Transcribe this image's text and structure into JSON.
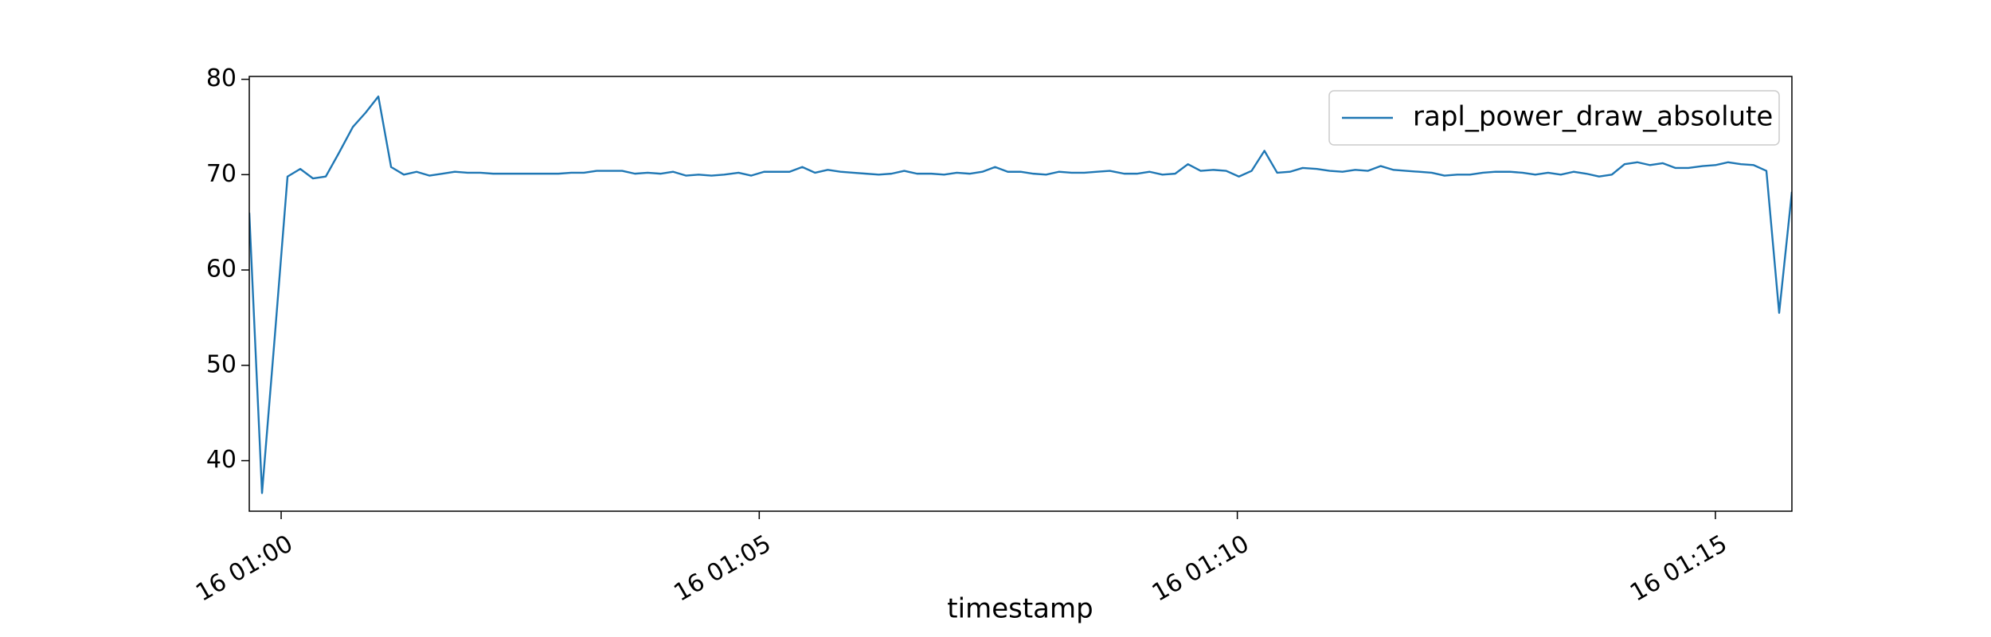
{
  "chart_data": {
    "type": "line",
    "xlabel": "timestamp",
    "x": [
      "16 00:59:40",
      "16 00:59:48",
      "16 00:59:56",
      "16 01:00:04",
      "16 01:00:12",
      "16 01:00:20",
      "16 01:00:28",
      "16 01:00:36",
      "16 01:00:45",
      "16 01:00:53",
      "16 01:01:01",
      "16 01:01:09",
      "16 01:01:17",
      "16 01:01:25",
      "16 01:01:33",
      "16 01:01:41",
      "16 01:01:49",
      "16 01:01:57",
      "16 01:02:05",
      "16 01:02:13",
      "16 01:02:21",
      "16 01:02:29",
      "16 01:02:37",
      "16 01:02:46",
      "16 01:02:54",
      "16 01:03:02",
      "16 01:03:10",
      "16 01:03:18",
      "16 01:03:26",
      "16 01:03:34",
      "16 01:03:42",
      "16 01:03:50",
      "16 01:03:58",
      "16 01:04:06",
      "16 01:04:14",
      "16 01:04:22",
      "16 01:04:30",
      "16 01:04:38",
      "16 01:04:47",
      "16 01:04:55",
      "16 01:05:03",
      "16 01:05:11",
      "16 01:05:19",
      "16 01:05:27",
      "16 01:05:35",
      "16 01:05:43",
      "16 01:05:51",
      "16 01:05:59",
      "16 01:06:07",
      "16 01:06:15",
      "16 01:06:23",
      "16 01:06:31",
      "16 01:06:39",
      "16 01:06:48",
      "16 01:06:56",
      "16 01:07:04",
      "16 01:07:12",
      "16 01:07:20",
      "16 01:07:28",
      "16 01:07:36",
      "16 01:07:44",
      "16 01:07:52",
      "16 01:08:00",
      "16 01:08:08",
      "16 01:08:16",
      "16 01:08:24",
      "16 01:08:32",
      "16 01:08:40",
      "16 01:08:49",
      "16 01:08:57",
      "16 01:09:05",
      "16 01:09:13",
      "16 01:09:21",
      "16 01:09:29",
      "16 01:09:37",
      "16 01:09:45",
      "16 01:09:53",
      "16 01:10:01",
      "16 01:10:09",
      "16 01:10:17",
      "16 01:10:25",
      "16 01:10:33",
      "16 01:10:41",
      "16 01:10:50",
      "16 01:10:58",
      "16 01:11:06",
      "16 01:11:14",
      "16 01:11:22",
      "16 01:11:30",
      "16 01:11:38",
      "16 01:11:46",
      "16 01:11:54",
      "16 01:12:02",
      "16 01:12:10",
      "16 01:12:18",
      "16 01:12:26",
      "16 01:12:34",
      "16 01:12:42",
      "16 01:12:51",
      "16 01:12:59",
      "16 01:13:07",
      "16 01:13:15",
      "16 01:13:23",
      "16 01:13:31",
      "16 01:13:39",
      "16 01:13:47",
      "16 01:13:55",
      "16 01:14:03",
      "16 01:14:11",
      "16 01:14:19",
      "16 01:14:27",
      "16 01:14:35",
      "16 01:14:43",
      "16 01:14:52",
      "16 01:15:00",
      "16 01:15:08",
      "16 01:15:16",
      "16 01:15:24",
      "16 01:15:32",
      "16 01:15:40",
      "16 01:15:48"
    ],
    "series": [
      {
        "name": "rapl_power_draw_absolute",
        "color": "#1f77b4",
        "values": [
          66,
          36.6,
          53,
          69.8,
          70.6,
          69.6,
          69.8,
          72.2,
          75,
          76.5,
          78.2,
          70.8,
          70.0,
          70.3,
          69.9,
          70.1,
          70.3,
          70.2,
          70.2,
          70.1,
          70.1,
          70.1,
          70.1,
          70.1,
          70.1,
          70.2,
          70.2,
          70.4,
          70.4,
          70.4,
          70.1,
          70.2,
          70.1,
          70.3,
          69.9,
          70.0,
          69.9,
          70.0,
          70.2,
          69.9,
          70.3,
          70.3,
          70.3,
          70.8,
          70.2,
          70.5,
          70.3,
          70.2,
          70.1,
          70.0,
          70.1,
          70.4,
          70.1,
          70.1,
          70.0,
          70.2,
          70.1,
          70.3,
          70.8,
          70.3,
          70.3,
          70.1,
          70.0,
          70.3,
          70.2,
          70.2,
          70.3,
          70.4,
          70.1,
          70.1,
          70.3,
          70.0,
          70.1,
          71.1,
          70.4,
          70.5,
          70.4,
          69.8,
          70.4,
          72.5,
          70.2,
          70.3,
          70.7,
          70.6,
          70.4,
          70.3,
          70.5,
          70.4,
          70.9,
          70.5,
          70.4,
          70.3,
          70.2,
          69.9,
          70.0,
          70.0,
          70.2,
          70.3,
          70.3,
          70.2,
          70.0,
          70.2,
          70.0,
          70.3,
          70.1,
          69.8,
          70.0,
          71.1,
          71.3,
          71.0,
          71.2,
          70.7,
          70.7,
          70.9,
          71.0,
          71.3,
          71.1,
          71.0,
          70.4,
          55.5,
          68.2
        ]
      }
    ],
    "xlim": [
      "16 00:59:40",
      "16 01:15:48"
    ],
    "xticks": [
      "16 01:00",
      "16 01:05",
      "16 01:10",
      "16 01:15"
    ],
    "ylim": [
      34.7,
      80.3
    ],
    "yticks": [
      40,
      50,
      60,
      70,
      80
    ],
    "grid": false,
    "legend": "upper right"
  }
}
